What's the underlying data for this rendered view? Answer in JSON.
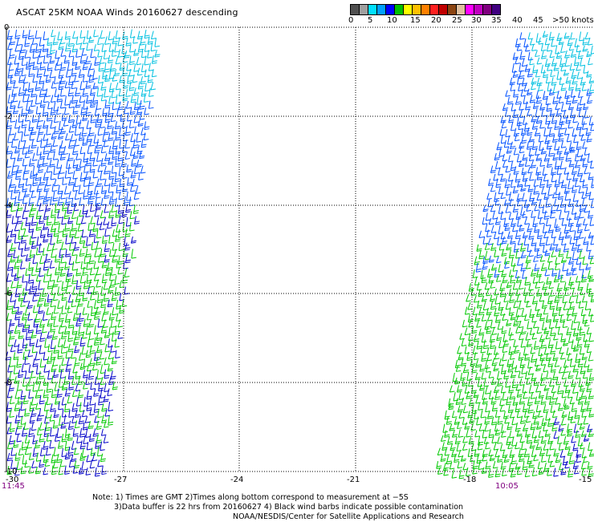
{
  "title": "ASCAT 25KM NOAA Winds 20160627 descending",
  "colorbar": {
    "colors": [
      "#505050",
      "#a0a0a0",
      "#00e0ff",
      "#00a0ff",
      "#0000ff",
      "#00c000",
      "#ffff00",
      "#ffc000",
      "#ff8000",
      "#ff2020",
      "#c00000",
      "#8b4513",
      "#e0c0a0",
      "#ff00ff",
      "#c000c0",
      "#800080",
      "#400080"
    ],
    "labels": [
      "0",
      "5",
      "10",
      "15",
      "20",
      "25",
      "30",
      "35",
      "40",
      "45",
      ">50 knots"
    ]
  },
  "map": {
    "lon_ticks": [
      "-30",
      "-27",
      "-24",
      "-21",
      "-18",
      "-15"
    ],
    "lat_ticks": [
      "0",
      "-2",
      "-4",
      "-6",
      "-8",
      "-10"
    ],
    "lon_range": [
      -30,
      -15
    ],
    "lat_range": [
      -10,
      0
    ],
    "grid": "dotted",
    "swath_times": [
      "11:45",
      "10:05"
    ],
    "barb_colors": {
      "light_blue": "#00c0e0",
      "blue": "#0050ff",
      "dark_blue": "#0000c8",
      "green": "#00c800"
    }
  },
  "notes": [
    "Note: 1) Times are GMT 2)Times along bottom correspond to measurement at −5S",
    "3)Data buffer is 22 hrs from 20160627 4) Black wind barbs indicate possible contamination",
    "NOAA/NESDIS/Center for Satellite Applications and Research"
  ]
}
